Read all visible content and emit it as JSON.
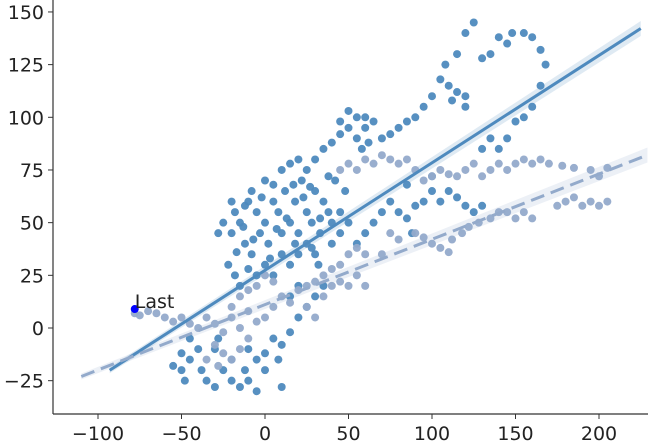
{
  "chart_data": {
    "type": "scatter",
    "title": "",
    "xlabel": "",
    "ylabel": "",
    "xlim": [
      -127,
      229
    ],
    "ylim": [
      -41,
      155
    ],
    "grid": false,
    "x_ticks": [
      -100,
      -50,
      0,
      50,
      100,
      150,
      200
    ],
    "y_ticks": [
      -25,
      0,
      25,
      50,
      75,
      100,
      125,
      150
    ],
    "x_tick_labels": [
      "−100",
      "−50",
      "0",
      "50",
      "100",
      "150",
      "200"
    ],
    "y_tick_labels": [
      "−25",
      "0",
      "25",
      "50",
      "75",
      "100",
      "125",
      "150"
    ],
    "colors": {
      "dark": "#4e8abe",
      "light": "#93aacb",
      "last": "#0000ff"
    },
    "series": [
      {
        "color": "#4e8abe",
        "points": [
          [
            -20,
            45
          ],
          [
            -18,
            55
          ],
          [
            -15,
            50
          ],
          [
            -12,
            40
          ],
          [
            -10,
            60
          ],
          [
            -8,
            35
          ],
          [
            -5,
            55
          ],
          [
            -3,
            45
          ],
          [
            0,
            50
          ],
          [
            2,
            40
          ],
          [
            5,
            60
          ],
          [
            8,
            55
          ],
          [
            10,
            45
          ],
          [
            12,
            65
          ],
          [
            15,
            50
          ],
          [
            18,
            60
          ],
          [
            20,
            45
          ],
          [
            22,
            70
          ],
          [
            25,
            55
          ],
          [
            28,
            50
          ],
          [
            30,
            65
          ],
          [
            33,
            45
          ],
          [
            35,
            60
          ],
          [
            38,
            55
          ],
          [
            40,
            50
          ],
          [
            42,
            70
          ],
          [
            45,
            45
          ],
          [
            -22,
            30
          ],
          [
            -18,
            25
          ],
          [
            -15,
            20
          ],
          [
            -10,
            28
          ],
          [
            -5,
            25
          ],
          [
            0,
            30
          ],
          [
            5,
            25
          ],
          [
            10,
            35
          ],
          [
            15,
            30
          ],
          [
            20,
            35
          ],
          [
            25,
            40
          ],
          [
            30,
            35
          ],
          [
            -25,
            50
          ],
          [
            -28,
            45
          ],
          [
            -20,
            60
          ],
          [
            -12,
            58
          ],
          [
            -8,
            65
          ],
          [
            0,
            70
          ],
          [
            10,
            75
          ],
          [
            15,
            78
          ],
          [
            20,
            80
          ],
          [
            25,
            75
          ],
          [
            5,
            68
          ],
          [
            -2,
            62
          ],
          [
            18,
            40
          ],
          [
            28,
            38
          ],
          [
            32,
            30
          ],
          [
            40,
            40
          ],
          [
            45,
            55
          ],
          [
            50,
            50
          ],
          [
            48,
            65
          ],
          [
            38,
            72
          ],
          [
            -17,
            36
          ],
          [
            -7,
            42
          ],
          [
            3,
            33
          ],
          [
            13,
            52
          ],
          [
            23,
            62
          ],
          [
            33,
            52
          ],
          [
            7,
            47
          ],
          [
            -13,
            48
          ],
          [
            17,
            68
          ],
          [
            27,
            67
          ],
          [
            30,
            80
          ],
          [
            35,
            85
          ],
          [
            40,
            88
          ],
          [
            45,
            92
          ],
          [
            50,
            95
          ],
          [
            55,
            90
          ],
          [
            60,
            95
          ],
          [
            55,
            100
          ],
          [
            50,
            103
          ],
          [
            60,
            100
          ],
          [
            65,
            98
          ],
          [
            45,
            98
          ],
          [
            58,
            85
          ],
          [
            62,
            88
          ],
          [
            70,
            90
          ],
          [
            75,
            92
          ],
          [
            80,
            95
          ],
          [
            85,
            98
          ],
          [
            90,
            100
          ],
          [
            95,
            105
          ],
          [
            100,
            110
          ],
          [
            105,
            118
          ],
          [
            110,
            115
          ],
          [
            115,
            112
          ],
          [
            120,
            110
          ],
          [
            108,
            125
          ],
          [
            115,
            130
          ],
          [
            120,
            140
          ],
          [
            125,
            145
          ],
          [
            130,
            128
          ],
          [
            135,
            130
          ],
          [
            140,
            138
          ],
          [
            145,
            135
          ],
          [
            148,
            140
          ],
          [
            155,
            140
          ],
          [
            160,
            138
          ],
          [
            165,
            132
          ],
          [
            168,
            125
          ],
          [
            165,
            115
          ],
          [
            160,
            105
          ],
          [
            155,
            100
          ],
          [
            150,
            98
          ],
          [
            145,
            90
          ],
          [
            140,
            85
          ],
          [
            135,
            90
          ],
          [
            130,
            85
          ],
          [
            120,
            105
          ],
          [
            112,
            108
          ],
          [
            80,
            55
          ],
          [
            85,
            52
          ],
          [
            90,
            58
          ],
          [
            88,
            45
          ],
          [
            95,
            60
          ],
          [
            100,
            65
          ],
          [
            105,
            60
          ],
          [
            110,
            65
          ],
          [
            115,
            62
          ],
          [
            120,
            58
          ],
          [
            125,
            55
          ],
          [
            130,
            58
          ],
          [
            100,
            72
          ],
          [
            85,
            68
          ],
          [
            75,
            60
          ],
          [
            70,
            55
          ],
          [
            65,
            50
          ],
          [
            60,
            45
          ],
          [
            55,
            40
          ],
          [
            -40,
            -10
          ],
          [
            -45,
            -15
          ],
          [
            -50,
            -20
          ],
          [
            -55,
            -18
          ],
          [
            -35,
            -25
          ],
          [
            -30,
            -28
          ],
          [
            -20,
            -25
          ],
          [
            -15,
            -28
          ],
          [
            -10,
            -25
          ],
          [
            -5,
            -30
          ],
          [
            10,
            -28
          ],
          [
            -25,
            -20
          ],
          [
            -10,
            -10
          ],
          [
            -5,
            -15
          ],
          [
            0,
            -12
          ],
          [
            5,
            -5
          ],
          [
            10,
            -8
          ],
          [
            15,
            -2
          ],
          [
            20,
            5
          ],
          [
            25,
            10
          ],
          [
            30,
            15
          ],
          [
            35,
            20
          ],
          [
            15,
            15
          ],
          [
            20,
            20
          ],
          [
            8,
            -15
          ],
          [
            -20,
            -15
          ],
          [
            -30,
            -10
          ],
          [
            -45,
            -5
          ],
          [
            -50,
            -12
          ],
          [
            -38,
            -20
          ],
          [
            -28,
            -5
          ],
          [
            -12,
            -20
          ],
          [
            0,
            -20
          ],
          [
            -48,
            -25
          ]
        ],
        "fit": {
          "slope": 0.51,
          "intercept": 27.4,
          "x_range": [
            -93,
            225
          ],
          "style": "solid"
        }
      },
      {
        "color": "#93aacb",
        "points": [
          [
            -78,
            7
          ],
          [
            -75,
            6
          ],
          [
            -70,
            8
          ],
          [
            -65,
            7
          ],
          [
            -60,
            5
          ],
          [
            -55,
            3
          ],
          [
            -50,
            5
          ],
          [
            -45,
            2
          ],
          [
            -40,
            0
          ],
          [
            -35,
            5
          ],
          [
            -30,
            2
          ],
          [
            -25,
            -2
          ],
          [
            -20,
            5
          ],
          [
            -15,
            0
          ],
          [
            -10,
            8
          ],
          [
            -5,
            3
          ],
          [
            0,
            5
          ],
          [
            5,
            10
          ],
          [
            10,
            15
          ],
          [
            15,
            12
          ],
          [
            -30,
            -8
          ],
          [
            -25,
            -12
          ],
          [
            -20,
            -15
          ],
          [
            -35,
            -15
          ],
          [
            -28,
            -18
          ],
          [
            -15,
            -10
          ],
          [
            -10,
            -5
          ],
          [
            20,
            18
          ],
          [
            25,
            20
          ],
          [
            30,
            22
          ],
          [
            35,
            25
          ],
          [
            40,
            28
          ],
          [
            45,
            30
          ],
          [
            50,
            35
          ],
          [
            55,
            38
          ],
          [
            60,
            35
          ],
          [
            35,
            15
          ],
          [
            40,
            20
          ],
          [
            45,
            22
          ],
          [
            50,
            20
          ],
          [
            55,
            25
          ],
          [
            60,
            20
          ],
          [
            25,
            10
          ],
          [
            30,
            5
          ],
          [
            -10,
            18
          ],
          [
            -5,
            20
          ],
          [
            0,
            25
          ],
          [
            5,
            22
          ],
          [
            -20,
            10
          ],
          [
            -15,
            15
          ],
          [
            45,
            75
          ],
          [
            50,
            78
          ],
          [
            55,
            75
          ],
          [
            60,
            80
          ],
          [
            65,
            78
          ],
          [
            70,
            82
          ],
          [
            75,
            80
          ],
          [
            80,
            78
          ],
          [
            85,
            80
          ],
          [
            90,
            75
          ],
          [
            95,
            70
          ],
          [
            100,
            72
          ],
          [
            105,
            75
          ],
          [
            110,
            73
          ],
          [
            115,
            72
          ],
          [
            120,
            75
          ],
          [
            125,
            78
          ],
          [
            130,
            72
          ],
          [
            135,
            75
          ],
          [
            140,
            78
          ],
          [
            145,
            75
          ],
          [
            150,
            78
          ],
          [
            155,
            80
          ],
          [
            160,
            78
          ],
          [
            165,
            80
          ],
          [
            170,
            78
          ],
          [
            178,
            77
          ],
          [
            185,
            76
          ],
          [
            195,
            75
          ],
          [
            200,
            72
          ],
          [
            205,
            76
          ],
          [
            90,
            45
          ],
          [
            95,
            43
          ],
          [
            100,
            40
          ],
          [
            105,
            38
          ],
          [
            110,
            36
          ],
          [
            112,
            42
          ],
          [
            118,
            45
          ],
          [
            122,
            48
          ],
          [
            128,
            50
          ],
          [
            135,
            52
          ],
          [
            140,
            55
          ],
          [
            145,
            55
          ],
          [
            150,
            52
          ],
          [
            155,
            55
          ],
          [
            160,
            52
          ],
          [
            175,
            58
          ],
          [
            180,
            60
          ],
          [
            185,
            62
          ],
          [
            190,
            58
          ],
          [
            195,
            60
          ],
          [
            200,
            58
          ],
          [
            205,
            60
          ],
          [
            75,
            45
          ],
          [
            80,
            42
          ],
          [
            70,
            35
          ]
        ],
        "fit": {
          "slope": 0.31,
          "intercept": 11.1,
          "x_range": [
            -110,
            229
          ],
          "style": "dashed"
        }
      }
    ],
    "annotations": [
      {
        "text": "Last",
        "x": -78,
        "y": 9
      }
    ]
  }
}
